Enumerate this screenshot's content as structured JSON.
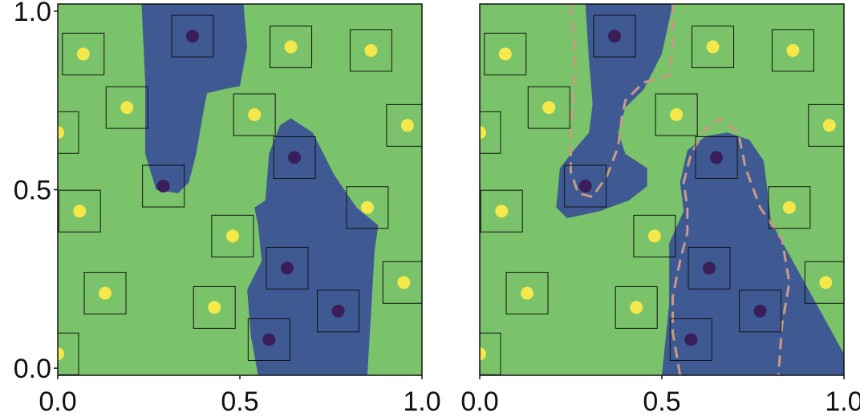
{
  "figure": {
    "colors": {
      "background_class": "#7ac36a",
      "region_class": "#3f5a93",
      "point_light": "#f4e84b",
      "point_dark": "#3a1e5a",
      "reference_boundary": "#c89a86",
      "frame": "#111111"
    }
  },
  "chart_data": [
    {
      "type": "scatter",
      "panel": "left",
      "title": "",
      "xlabel": "",
      "ylabel": "",
      "xlim": [
        0.0,
        1.0
      ],
      "ylim": [
        -0.02,
        1.02
      ],
      "xticks": [
        "0.0",
        "0.5",
        "1.0"
      ],
      "yticks": [
        "0.0",
        "0.5",
        "1.0"
      ],
      "grid": false,
      "points_light": [
        [
          0.07,
          0.88
        ],
        [
          0.19,
          0.73
        ],
        [
          0.0,
          0.66
        ],
        [
          0.06,
          0.44
        ],
        [
          0.13,
          0.21
        ],
        [
          0.0,
          0.04
        ],
        [
          0.64,
          0.9
        ],
        [
          0.86,
          0.89
        ],
        [
          0.54,
          0.71
        ],
        [
          0.96,
          0.68
        ],
        [
          0.85,
          0.45
        ],
        [
          0.48,
          0.37
        ],
        [
          0.43,
          0.17
        ],
        [
          0.95,
          0.24
        ]
      ],
      "points_dark": [
        [
          0.37,
          0.93
        ],
        [
          0.29,
          0.51
        ],
        [
          0.65,
          0.59
        ],
        [
          0.63,
          0.28
        ],
        [
          0.77,
          0.16
        ],
        [
          0.58,
          0.08
        ]
      ],
      "regions": [
        [
          [
            0.23,
            1.02
          ],
          [
            0.51,
            1.02
          ],
          [
            0.52,
            0.9
          ],
          [
            0.5,
            0.79
          ],
          [
            0.45,
            0.78
          ],
          [
            0.41,
            0.77
          ],
          [
            0.4,
            0.72
          ],
          [
            0.38,
            0.6
          ],
          [
            0.36,
            0.52
          ],
          [
            0.33,
            0.49
          ],
          [
            0.27,
            0.5
          ],
          [
            0.24,
            0.6
          ],
          [
            0.24,
            0.8
          ]
        ],
        [
          [
            0.55,
            -0.02
          ],
          [
            0.85,
            -0.02
          ],
          [
            0.86,
            0.15
          ],
          [
            0.87,
            0.33
          ],
          [
            0.88,
            0.4
          ],
          [
            0.82,
            0.45
          ],
          [
            0.76,
            0.54
          ],
          [
            0.7,
            0.66
          ],
          [
            0.64,
            0.7
          ],
          [
            0.61,
            0.68
          ],
          [
            0.58,
            0.6
          ],
          [
            0.57,
            0.47
          ],
          [
            0.54,
            0.45
          ],
          [
            0.55,
            0.4
          ],
          [
            0.56,
            0.3
          ],
          [
            0.52,
            0.22
          ],
          [
            0.53,
            0.09
          ]
        ]
      ]
    },
    {
      "type": "scatter",
      "panel": "right",
      "title": "",
      "xlabel": "",
      "ylabel": "",
      "xlim": [
        0.0,
        1.0
      ],
      "ylim": [
        -0.02,
        1.02
      ],
      "xticks": [
        "0.0",
        "0.5",
        "1.0"
      ],
      "yticks": [],
      "grid": false,
      "points_light": [
        [
          0.07,
          0.88
        ],
        [
          0.19,
          0.73
        ],
        [
          0.0,
          0.66
        ],
        [
          0.06,
          0.44
        ],
        [
          0.13,
          0.21
        ],
        [
          0.0,
          0.04
        ],
        [
          0.64,
          0.9
        ],
        [
          0.86,
          0.89
        ],
        [
          0.54,
          0.71
        ],
        [
          0.96,
          0.68
        ],
        [
          0.85,
          0.45
        ],
        [
          0.48,
          0.37
        ],
        [
          0.43,
          0.17
        ],
        [
          0.95,
          0.24
        ]
      ],
      "points_dark": [
        [
          0.37,
          0.93
        ],
        [
          0.29,
          0.51
        ],
        [
          0.65,
          0.59
        ],
        [
          0.63,
          0.28
        ],
        [
          0.77,
          0.16
        ],
        [
          0.58,
          0.08
        ]
      ],
      "regions": [
        [
          [
            0.29,
            1.02
          ],
          [
            0.53,
            1.02
          ],
          [
            0.5,
            0.88
          ],
          [
            0.45,
            0.78
          ],
          [
            0.4,
            0.73
          ],
          [
            0.38,
            0.66
          ],
          [
            0.4,
            0.6
          ],
          [
            0.46,
            0.56
          ],
          [
            0.46,
            0.51
          ],
          [
            0.41,
            0.47
          ],
          [
            0.33,
            0.44
          ],
          [
            0.24,
            0.42
          ],
          [
            0.21,
            0.45
          ],
          [
            0.22,
            0.56
          ],
          [
            0.25,
            0.6
          ],
          [
            0.3,
            0.66
          ],
          [
            0.31,
            0.74
          ],
          [
            0.3,
            0.86
          ]
        ],
        [
          [
            0.5,
            -0.02
          ],
          [
            1.0,
            -0.02
          ],
          [
            1.0,
            0.04
          ],
          [
            0.8,
            0.41
          ],
          [
            0.78,
            0.58
          ],
          [
            0.74,
            0.64
          ],
          [
            0.68,
            0.66
          ],
          [
            0.62,
            0.65
          ],
          [
            0.57,
            0.61
          ],
          [
            0.55,
            0.52
          ],
          [
            0.56,
            0.44
          ],
          [
            0.52,
            0.35
          ],
          [
            0.52,
            0.18
          ]
        ]
      ],
      "reference_boundaries": [
        [
          [
            0.25,
            1.02
          ],
          [
            0.26,
            0.9
          ],
          [
            0.26,
            0.78
          ],
          [
            0.25,
            0.68
          ],
          [
            0.25,
            0.55
          ],
          [
            0.27,
            0.49
          ],
          [
            0.31,
            0.48
          ],
          [
            0.35,
            0.54
          ],
          [
            0.38,
            0.62
          ],
          [
            0.39,
            0.7
          ],
          [
            0.4,
            0.75
          ],
          [
            0.45,
            0.8
          ],
          [
            0.52,
            0.82
          ],
          [
            0.53,
            0.9
          ],
          [
            0.53,
            1.02
          ]
        ],
        [
          [
            0.55,
            -0.02
          ],
          [
            0.53,
            0.1
          ],
          [
            0.53,
            0.2
          ],
          [
            0.55,
            0.3
          ],
          [
            0.57,
            0.38
          ],
          [
            0.57,
            0.45
          ],
          [
            0.56,
            0.52
          ],
          [
            0.58,
            0.6
          ],
          [
            0.62,
            0.67
          ],
          [
            0.66,
            0.7
          ],
          [
            0.71,
            0.66
          ],
          [
            0.73,
            0.56
          ],
          [
            0.77,
            0.45
          ],
          [
            0.83,
            0.36
          ],
          [
            0.85,
            0.24
          ],
          [
            0.83,
            0.12
          ],
          [
            0.82,
            -0.02
          ]
        ]
      ]
    }
  ]
}
